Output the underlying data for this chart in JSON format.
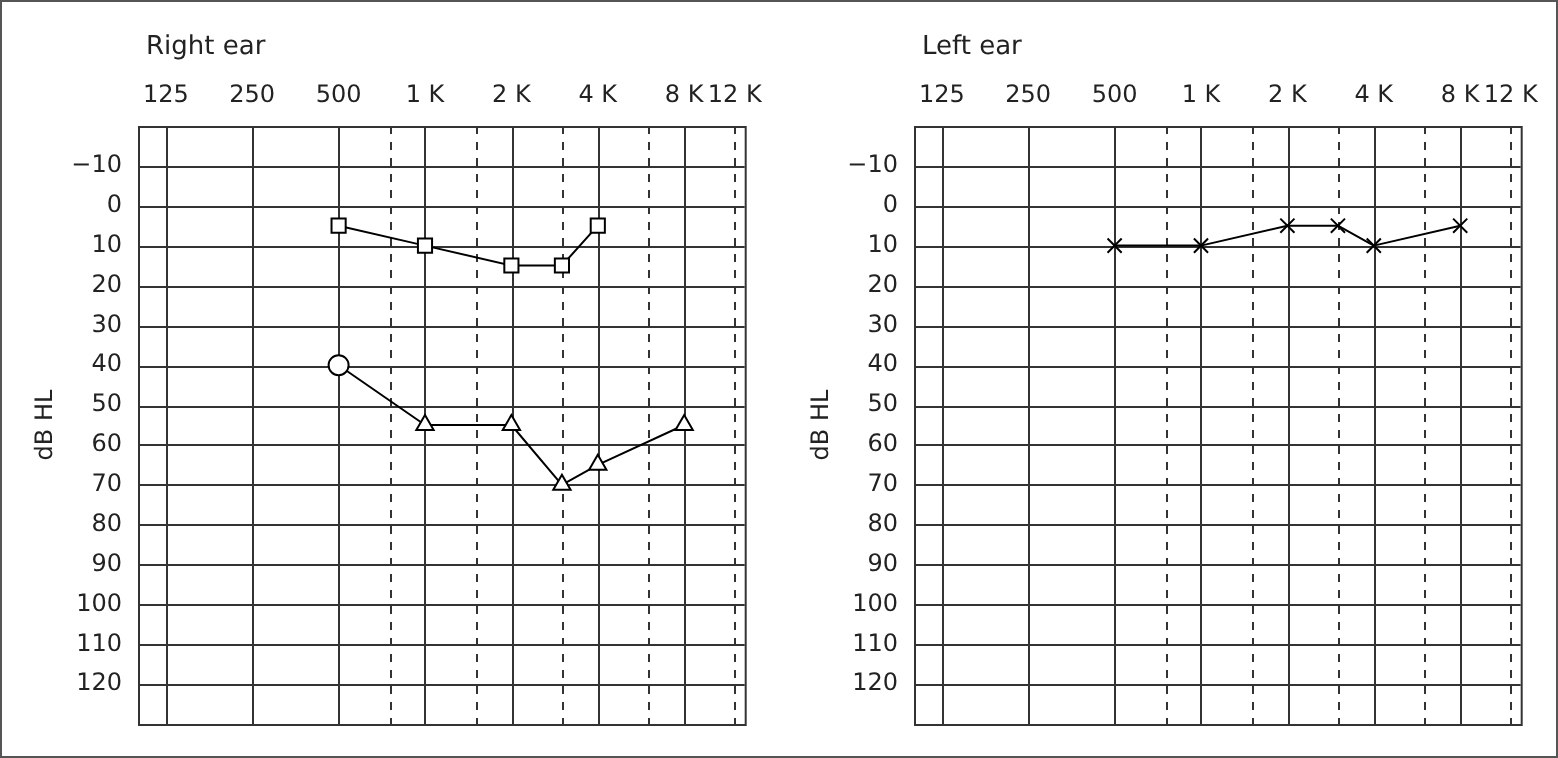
{
  "chart_data": [
    {
      "type": "line",
      "title": "Right ear",
      "ylabel": "dB HL",
      "xlim": [
        100,
        13000
      ],
      "ylim": [
        130,
        -20
      ],
      "log": "x",
      "grid": true,
      "line_style": "solid",
      "xticks": [
        125,
        250,
        500,
        {
          "value": 750,
          "label": null
        },
        {
          "value": 1000,
          "label": "1 K"
        },
        {
          "value": 1500,
          "label": null
        },
        {
          "value": 2000,
          "label": "2 K"
        },
        {
          "value": 3000,
          "label": null
        },
        {
          "value": 4000,
          "label": "4 K"
        },
        {
          "value": 6000,
          "label": null
        },
        {
          "value": 8000,
          "label": "8 K"
        },
        {
          "value": 12000,
          "label": "12 K"
        }
      ],
      "yticks": [
        {
          "value": -10,
          "label": "−10"
        },
        0,
        10,
        20,
        30,
        40,
        50,
        60,
        70,
        80,
        90,
        100,
        110,
        120
      ],
      "series": [
        {
          "color": "#000000",
          "marker": "square",
          "x": [
            500,
            1000,
            2000,
            3000,
            4000
          ],
          "values": [
            5,
            10,
            15,
            15,
            5
          ]
        },
        {
          "color": "#000000",
          "marker": [
            "circle",
            "triangle",
            "triangle",
            "triangle",
            "triangle",
            "triangle"
          ],
          "x": [
            500,
            1000,
            2000,
            3000,
            4000,
            8000
          ],
          "values": [
            40,
            55,
            55,
            70,
            65,
            55
          ]
        }
      ]
    },
    {
      "type": "line",
      "title": "Left ear",
      "ylabel": "dB HL",
      "xlim": [
        100,
        13000
      ],
      "ylim": [
        130,
        -20
      ],
      "log": "x",
      "grid": true,
      "line_style": "solid",
      "xticks": [
        125,
        250,
        500,
        {
          "value": 750,
          "label": null
        },
        {
          "value": 1000,
          "label": "1 K"
        },
        {
          "value": 1500,
          "label": null
        },
        {
          "value": 2000,
          "label": "2 K"
        },
        {
          "value": 3000,
          "label": null
        },
        {
          "value": 4000,
          "label": "4 K"
        },
        {
          "value": 6000,
          "label": null
        },
        {
          "value": 8000,
          "label": "8 K"
        },
        {
          "value": 12000,
          "label": "12 K"
        }
      ],
      "yticks": [
        {
          "value": -10,
          "label": "−10"
        },
        0,
        10,
        20,
        30,
        40,
        50,
        60,
        70,
        80,
        90,
        100,
        110,
        120
      ],
      "series": [
        {
          "color": "#000000",
          "marker": "cross",
          "x": [
            500,
            1000,
            2000,
            3000,
            4000,
            8000
          ],
          "values": [
            10,
            10,
            5,
            5,
            10,
            5
          ]
        }
      ]
    }
  ]
}
